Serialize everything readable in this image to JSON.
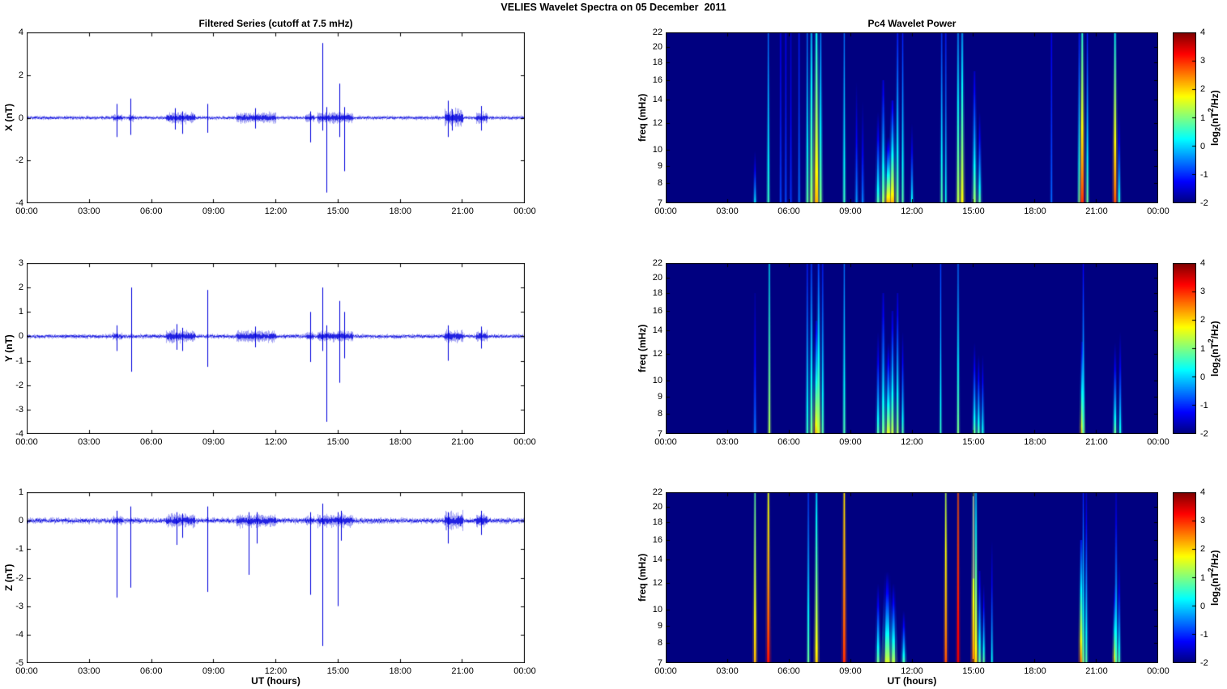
{
  "header": {
    "title": "VELIES Wavelet Spectra on 05 December  2011"
  },
  "left": {
    "title": "Filtered Series (cutoff at 7.5 mHz)"
  },
  "right": {
    "title": "Pc4 Wavelet Power"
  },
  "axes": {
    "ut_label": "UT (hours)",
    "x_ticks": [
      "00:00",
      "03:00",
      "06:00",
      "09:00",
      "12:00",
      "15:00",
      "18:00",
      "21:00",
      "00:00"
    ],
    "x_range_hours": [
      0,
      24
    ]
  },
  "colorbar": {
    "label_text": "log2(nT^2/Hz)",
    "label_prefix": "log",
    "label_sub": "2",
    "label_mid": "(nT",
    "label_sup": "2",
    "label_suffix": "/Hz)",
    "min": -2,
    "max": 4,
    "ticks": [
      4,
      3,
      2,
      1,
      0,
      -1,
      -2
    ],
    "colormap": "jet",
    "min_color": "#000084",
    "max_color": "#840000"
  },
  "series_color": "#0000dd",
  "chart_data": [
    {
      "type": "line",
      "name": "x-filtered-series",
      "ylabel": "X (nT)",
      "ylim": [
        -4,
        4
      ],
      "yticks": [
        4,
        2,
        0,
        -2,
        -4
      ],
      "xlim_hours": [
        0,
        24
      ],
      "seed": 11,
      "noise_amp": 0.09,
      "bursts": [
        [
          4.1,
          4.6,
          0.1
        ],
        [
          4.9,
          5.15,
          0.1
        ],
        [
          6.7,
          8.1,
          0.22
        ],
        [
          10.1,
          12.0,
          0.2
        ],
        [
          13.4,
          13.85,
          0.14
        ],
        [
          14.0,
          15.7,
          0.2
        ],
        [
          20.1,
          21.0,
          0.38
        ],
        [
          21.65,
          22.2,
          0.22
        ]
      ],
      "spikes": [
        [
          4.35,
          0.65,
          -0.9
        ],
        [
          5.0,
          0.9,
          -0.8
        ],
        [
          7.15,
          0.45,
          -0.55
        ],
        [
          7.5,
          0.3,
          -0.75
        ],
        [
          8.7,
          0.65,
          -0.7
        ],
        [
          11.0,
          0.45,
          -0.5
        ],
        [
          13.65,
          0.3,
          -1.15
        ],
        [
          14.25,
          3.5,
          -0.6
        ],
        [
          14.45,
          0.5,
          -3.5
        ],
        [
          15.05,
          1.6,
          -0.9
        ],
        [
          15.3,
          0.5,
          -2.5
        ],
        [
          20.3,
          0.8,
          -0.9
        ],
        [
          20.5,
          0.4,
          -0.6
        ],
        [
          21.9,
          0.55,
          -0.6
        ]
      ]
    },
    {
      "type": "heatmap",
      "name": "x-wavelet-power",
      "ylabel": "freq (mHz)",
      "flim": [
        7,
        22
      ],
      "yticks": [
        22,
        20,
        18,
        16,
        14,
        12,
        10,
        9,
        8,
        7
      ],
      "yscale": "log",
      "clim": [
        -2,
        4
      ],
      "streaks": [
        [
          4.35,
          0.2,
          10,
          2,
          -2
        ],
        [
          5.0,
          0.6,
          22,
          2,
          -0.6
        ],
        [
          5.6,
          -0.8,
          22,
          1.5,
          -1.3
        ],
        [
          5.85,
          -0.8,
          22,
          1.5,
          -1.3
        ],
        [
          6.1,
          -0.9,
          22,
          1.5,
          -1.5
        ],
        [
          6.5,
          -0.5,
          22,
          1.5,
          -1.1
        ],
        [
          6.9,
          0.8,
          22,
          2,
          -0.6
        ],
        [
          7.1,
          1.2,
          22,
          3,
          -0.1
        ],
        [
          7.35,
          2.2,
          22,
          4,
          0.3
        ],
        [
          7.55,
          1.0,
          22,
          2.5,
          -0.5
        ],
        [
          8.7,
          0.6,
          22,
          2,
          -0.6
        ],
        [
          9.3,
          -0.3,
          16,
          2,
          -2
        ],
        [
          9.6,
          -0.4,
          14,
          2,
          -2
        ],
        [
          10.35,
          0.8,
          13,
          3,
          -2
        ],
        [
          10.6,
          1.2,
          16,
          3,
          -1.5
        ],
        [
          10.85,
          2.3,
          11,
          5,
          -2
        ],
        [
          11.05,
          2.2,
          14,
          4,
          -1.5
        ],
        [
          11.3,
          1.0,
          22,
          2.5,
          -1.1
        ],
        [
          11.55,
          0.8,
          22,
          2,
          -1.1
        ],
        [
          12.0,
          0.4,
          12,
          2,
          -2
        ],
        [
          13.45,
          0.8,
          22,
          2,
          -0.9
        ],
        [
          13.65,
          0.4,
          22,
          1.5,
          -1.1
        ],
        [
          14.25,
          1.4,
          22,
          2.5,
          -0.4
        ],
        [
          14.45,
          1.8,
          22,
          3,
          -0.3
        ],
        [
          15.05,
          1.2,
          17,
          3,
          -1.6
        ],
        [
          15.3,
          0.9,
          13,
          2.5,
          -2
        ],
        [
          18.8,
          -0.6,
          22,
          1.5,
          -1.3
        ],
        [
          20.15,
          0.8,
          22,
          2,
          -1.1
        ],
        [
          20.3,
          3.0,
          22,
          3.5,
          0.5
        ],
        [
          20.55,
          0.9,
          22,
          2,
          -1.1
        ],
        [
          21.9,
          2.8,
          22,
          3,
          0.3
        ],
        [
          22.1,
          0.6,
          13,
          2,
          -2
        ]
      ]
    },
    {
      "type": "line",
      "name": "y-filtered-series",
      "ylabel": "Y (nT)",
      "ylim": [
        -4,
        3
      ],
      "yticks": [
        3,
        2,
        1,
        0,
        -1,
        -2,
        -3,
        -4
      ],
      "xlim_hours": [
        0,
        24
      ],
      "seed": 22,
      "noise_amp": 0.09,
      "bursts": [
        [
          4.1,
          4.6,
          0.08
        ],
        [
          6.7,
          8.1,
          0.2
        ],
        [
          10.1,
          12.0,
          0.18
        ],
        [
          13.4,
          13.85,
          0.1
        ],
        [
          14.0,
          15.7,
          0.16
        ],
        [
          20.1,
          21.0,
          0.2
        ],
        [
          21.65,
          22.2,
          0.16
        ]
      ],
      "spikes": [
        [
          4.35,
          0.45,
          -0.6
        ],
        [
          5.05,
          2.0,
          -1.45
        ],
        [
          7.2,
          0.5,
          -0.55
        ],
        [
          7.5,
          0.35,
          -0.6
        ],
        [
          8.72,
          1.9,
          -1.25
        ],
        [
          11.0,
          0.4,
          -0.45
        ],
        [
          13.65,
          1.0,
          -1.05
        ],
        [
          14.25,
          2.0,
          -0.6
        ],
        [
          14.45,
          0.45,
          -3.5
        ],
        [
          15.05,
          1.45,
          -1.9
        ],
        [
          15.3,
          1.0,
          -0.9
        ],
        [
          20.3,
          0.45,
          -1.0
        ],
        [
          21.9,
          0.4,
          -0.5
        ]
      ]
    },
    {
      "type": "heatmap",
      "name": "y-wavelet-power",
      "ylabel": "freq (mHz)",
      "flim": [
        7,
        22
      ],
      "yticks": [
        22,
        20,
        18,
        16,
        14,
        12,
        10,
        9,
        8,
        7
      ],
      "yscale": "log",
      "clim": [
        -2,
        4
      ],
      "streaks": [
        [
          4.35,
          -0.5,
          18,
          2,
          -1.8
        ],
        [
          5.05,
          1.3,
          22,
          2,
          0.2
        ],
        [
          6.9,
          0.6,
          22,
          2,
          -1.1
        ],
        [
          7.1,
          1.0,
          22,
          2.5,
          -0.9
        ],
        [
          7.35,
          2.2,
          15,
          4,
          -1.6
        ],
        [
          7.45,
          1.5,
          22,
          3,
          -0.9
        ],
        [
          7.65,
          0.8,
          22,
          2,
          -1.1
        ],
        [
          8.7,
          0.7,
          22,
          2,
          -0.6
        ],
        [
          10.35,
          0.8,
          14,
          2.5,
          -2
        ],
        [
          10.6,
          1.0,
          18,
          3,
          -1.6
        ],
        [
          10.85,
          1.6,
          13,
          4,
          -2
        ],
        [
          11.05,
          1.4,
          16,
          3,
          -1.6
        ],
        [
          11.3,
          1.2,
          18,
          2.5,
          -1.6
        ],
        [
          11.55,
          0.8,
          14,
          2,
          -2
        ],
        [
          13.4,
          0.6,
          22,
          1.5,
          -0.9
        ],
        [
          14.25,
          1.0,
          22,
          2,
          -0.6
        ],
        [
          15.05,
          0.9,
          13,
          2.5,
          -2
        ],
        [
          15.25,
          0.8,
          12,
          2.5,
          -2
        ],
        [
          15.45,
          0.5,
          12,
          2,
          -2
        ],
        [
          20.3,
          2.2,
          13,
          3,
          -1.6
        ],
        [
          20.35,
          0.8,
          22,
          2,
          -1.3
        ],
        [
          21.9,
          0.9,
          13,
          2.5,
          -2
        ],
        [
          22.15,
          0.5,
          14,
          2,
          -2
        ]
      ]
    },
    {
      "type": "line",
      "name": "z-filtered-series",
      "ylabel": "Z (nT)",
      "ylim": [
        -5,
        1
      ],
      "yticks": [
        1,
        0,
        -1,
        -2,
        -3,
        -4,
        -5
      ],
      "xlim_hours": [
        0,
        24
      ],
      "seed": 33,
      "noise_amp": 0.1,
      "bursts": [
        [
          4.1,
          4.6,
          0.1
        ],
        [
          6.7,
          8.1,
          0.16
        ],
        [
          10.1,
          12.0,
          0.15
        ],
        [
          13.4,
          13.85,
          0.1
        ],
        [
          14.0,
          15.7,
          0.16
        ],
        [
          20.1,
          21.0,
          0.28
        ],
        [
          21.65,
          22.2,
          0.2
        ]
      ],
      "spikes": [
        [
          4.35,
          0.35,
          -2.7
        ],
        [
          5.0,
          0.5,
          -2.35
        ],
        [
          7.2,
          0.3,
          -0.85
        ],
        [
          7.5,
          0.25,
          -0.6
        ],
        [
          8.7,
          0.5,
          -2.5
        ],
        [
          10.7,
          0.3,
          -1.9
        ],
        [
          11.1,
          0.3,
          -0.8
        ],
        [
          13.65,
          0.3,
          -2.6
        ],
        [
          14.25,
          0.6,
          -4.4
        ],
        [
          15.0,
          0.3,
          -3.0
        ],
        [
          15.15,
          0.35,
          -0.7
        ],
        [
          20.3,
          0.3,
          -0.8
        ],
        [
          21.9,
          0.35,
          -0.5
        ]
      ]
    },
    {
      "type": "heatmap",
      "name": "z-wavelet-power",
      "ylabel": "freq (mHz)",
      "flim": [
        7,
        22
      ],
      "yticks": [
        22,
        20,
        18,
        16,
        14,
        12,
        10,
        9,
        8,
        7
      ],
      "yscale": "log",
      "clim": [
        -2,
        4
      ],
      "streaks": [
        [
          4.35,
          2.2,
          22,
          2.5,
          0.8
        ],
        [
          5.0,
          3.2,
          22,
          3,
          1.6
        ],
        [
          6.95,
          0.9,
          22,
          2,
          -0.9
        ],
        [
          7.35,
          2.0,
          22,
          3,
          0
        ],
        [
          8.7,
          3.0,
          22,
          3,
          1.9
        ],
        [
          10.35,
          1.0,
          12,
          3,
          -2
        ],
        [
          10.8,
          1.6,
          13,
          6,
          -2
        ],
        [
          11.1,
          1.4,
          12,
          4,
          -2
        ],
        [
          11.6,
          0.8,
          10,
          3,
          -2
        ],
        [
          13.65,
          2.8,
          22,
          2.5,
          1.3
        ],
        [
          14.25,
          3.4,
          22,
          2.5,
          2.7
        ],
        [
          15.0,
          2.6,
          22,
          3,
          0.6
        ],
        [
          15.12,
          2.0,
          22,
          2.5,
          -0.1
        ],
        [
          15.3,
          1.0,
          13,
          2.5,
          -1.6
        ],
        [
          15.5,
          0.9,
          12,
          2,
          -2
        ],
        [
          15.9,
          0.4,
          16,
          1.5,
          -2
        ],
        [
          20.25,
          2.6,
          16,
          3,
          -1.1
        ],
        [
          20.35,
          1.0,
          22,
          2,
          -1.1
        ],
        [
          20.5,
          0.8,
          22,
          2,
          -1.6
        ],
        [
          21.9,
          2.2,
          12,
          3,
          -2
        ],
        [
          21.95,
          0.8,
          22,
          2,
          -1.6
        ],
        [
          22.1,
          0.8,
          14,
          2,
          -2
        ]
      ],
      "gray_streaks": [
        [
          15.0,
          0.5,
          2
        ]
      ]
    }
  ]
}
